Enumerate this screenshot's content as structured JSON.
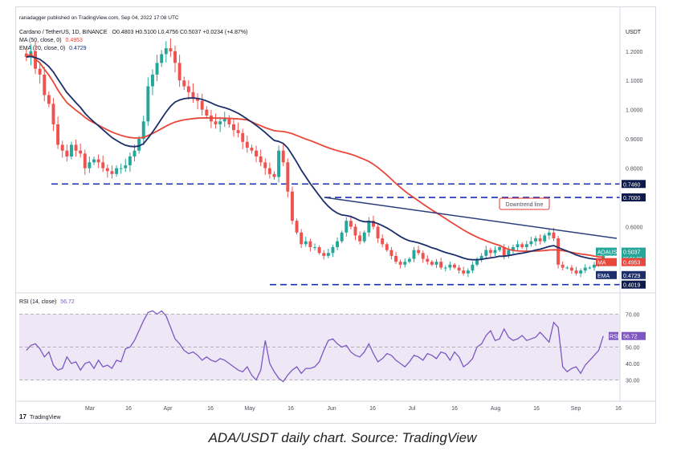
{
  "publisher": "ranadagger published on TradingView.com, Sep 04, 2022 17:08 UTC",
  "header": {
    "symbol_line": "Cardano / TetherUS, 1D, BINANCE",
    "ohlc": "O0.4803 H0.5100 L0.4756 C0.5037 +0.0234 (+4.87%)",
    "ma_line": "MA (50, close, 0)",
    "ma_value": "0.4953",
    "ema_line": "EMA (20, close, 0)",
    "ema_value": "0.4729",
    "rsi_line": "RSI (14, close)",
    "rsi_value": "56.72"
  },
  "branding": "TradingView",
  "caption": "ADA/USDT daily chart. Source: TradingView",
  "colors": {
    "up": "#26a69a",
    "down": "#ef5350",
    "ma": "#e8473a",
    "ema": "#1c2f6b",
    "rsi": "#7e57c2",
    "rsi_band": "#ede7f6",
    "level": "#1b2fb5",
    "trendline": "#2c3e7a",
    "annotation": "#e53935"
  },
  "chart_data": {
    "type": "candlestick",
    "price_axis": {
      "unit": "USDT",
      "range": [
        0.39,
        1.29
      ],
      "ticks": [
        "1.2000",
        "1.1000",
        "1.0000",
        "0.9000",
        "0.8000",
        "0.6000"
      ]
    },
    "time_axis": {
      "labels": [
        "Mar",
        "16",
        "Apr",
        "16",
        "May",
        "16",
        "Jun",
        "16",
        "Jul",
        "16",
        "Aug",
        "16",
        "Sep",
        "16"
      ]
    },
    "horizontal_levels": [
      {
        "label": "0.7460",
        "value": 0.746
      },
      {
        "label": "0.7000",
        "value": 0.7
      },
      {
        "label": "0.4019",
        "value": 0.4019
      }
    ],
    "annotation": {
      "text": "Downtrend line",
      "line": [
        [
          0.7,
          0.56
        ]
      ]
    },
    "price_tags": [
      {
        "name": "ADAUSDT",
        "value": "0.5037",
        "sub": "06:51:03"
      },
      {
        "name": "MA",
        "value": "0.4953"
      },
      {
        "name": "EMA",
        "value": "0.4729"
      }
    ],
    "closes": [
      1.18,
      1.2,
      1.14,
      1.12,
      1.05,
      1.02,
      0.95,
      0.88,
      0.86,
      0.84,
      0.88,
      0.86,
      0.85,
      0.8,
      0.82,
      0.83,
      0.82,
      0.8,
      0.79,
      0.78,
      0.8,
      0.8,
      0.81,
      0.84,
      0.86,
      0.9,
      0.96,
      1.08,
      1.12,
      1.16,
      1.19,
      1.21,
      1.2,
      1.16,
      1.1,
      1.08,
      1.06,
      1.04,
      1.03,
      1.0,
      0.98,
      0.96,
      0.95,
      0.96,
      0.97,
      0.95,
      0.93,
      0.92,
      0.89,
      0.87,
      0.86,
      0.84,
      0.82,
      0.8,
      0.78,
      0.77,
      0.86,
      0.82,
      0.72,
      0.62,
      0.58,
      0.54,
      0.55,
      0.53,
      0.53,
      0.51,
      0.5,
      0.51,
      0.53,
      0.55,
      0.58,
      0.62,
      0.6,
      0.57,
      0.55,
      0.58,
      0.62,
      0.6,
      0.56,
      0.54,
      0.52,
      0.5,
      0.48,
      0.47,
      0.48,
      0.49,
      0.52,
      0.51,
      0.49,
      0.48,
      0.47,
      0.48,
      0.46,
      0.46,
      0.47,
      0.46,
      0.45,
      0.44,
      0.45,
      0.47,
      0.49,
      0.5,
      0.52,
      0.51,
      0.52,
      0.53,
      0.5,
      0.52,
      0.53,
      0.54,
      0.53,
      0.54,
      0.55,
      0.56,
      0.55,
      0.57,
      0.58,
      0.56,
      0.47,
      0.46,
      0.46,
      0.45,
      0.44,
      0.45,
      0.46,
      0.46,
      0.47,
      0.48,
      0.5
    ],
    "rsi": {
      "range": [
        20,
        80
      ],
      "ticks": [
        "70.00",
        "50.00",
        "40.00",
        "30.00"
      ],
      "overbought": 70,
      "oversold": 30,
      "values": [
        48,
        51,
        52,
        49,
        44,
        47,
        39,
        36,
        37,
        44,
        40,
        41,
        36,
        40,
        41,
        37,
        42,
        38,
        39,
        37,
        42,
        41,
        49,
        50,
        54,
        60,
        66,
        71,
        72,
        70,
        72,
        69,
        62,
        55,
        52,
        48,
        46,
        47,
        45,
        42,
        44,
        42,
        41,
        43,
        42,
        40,
        38,
        36,
        35,
        38,
        33,
        30,
        36,
        54,
        40,
        35,
        31,
        29,
        33,
        36,
        38,
        34,
        37,
        37,
        38,
        41,
        48,
        54,
        55,
        52,
        50,
        51,
        47,
        45,
        44,
        47,
        52,
        46,
        41,
        43,
        46,
        45,
        42,
        40,
        38,
        41,
        45,
        44,
        42,
        46,
        45,
        43,
        47,
        46,
        42,
        47,
        44,
        38,
        40,
        43,
        50,
        52,
        57,
        60,
        54,
        55,
        61,
        56,
        54,
        55,
        57,
        54,
        55,
        56,
        59,
        56,
        53,
        65,
        62,
        38,
        35,
        37,
        38,
        34,
        39,
        42,
        45,
        48,
        56.72
      ]
    }
  }
}
